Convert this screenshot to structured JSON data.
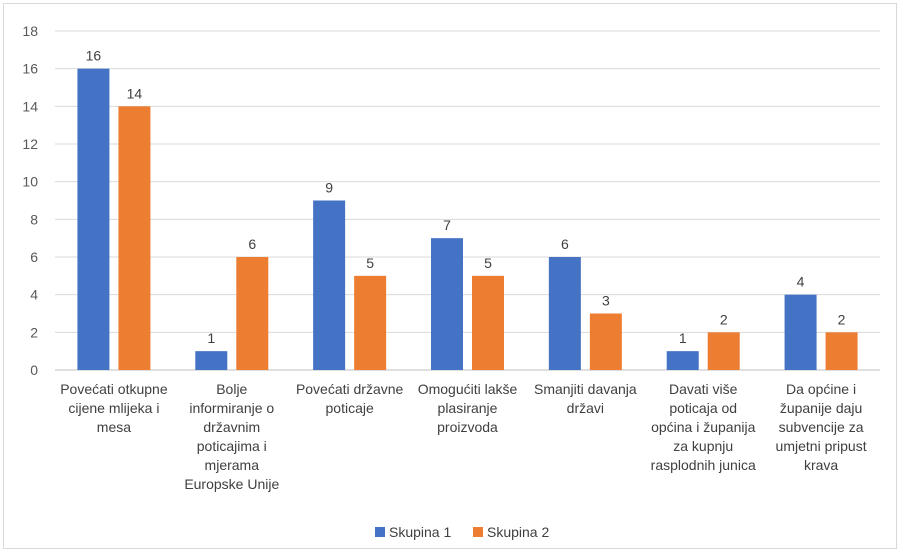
{
  "chart_data": {
    "type": "bar",
    "title": "",
    "xlabel": "",
    "ylabel": "",
    "ylim": [
      0,
      18
    ],
    "ytick_step": 2,
    "grid": true,
    "legend_position": "bottom",
    "categories": [
      [
        "Povećati otkupne",
        "cijene mlijeka i",
        "mesa"
      ],
      [
        "Bolje",
        "informiranje o",
        "državnim",
        "poticajima i",
        "mjerama",
        "Europske Unije"
      ],
      [
        "Povećati državne",
        "poticaje"
      ],
      [
        "Omogućiti lakše",
        "plasiranje",
        "proizvoda"
      ],
      [
        "Smanjiti davanja",
        "državi"
      ],
      [
        "Davati više",
        "poticaja od",
        "općina i županija",
        "za kupnju",
        "rasplodnih junica"
      ],
      [
        "Da općine i",
        "županije daju",
        "subvencije za",
        "umjetni pripust",
        "krava"
      ]
    ],
    "series": [
      {
        "name": "Skupina 1",
        "color": "#4472c4",
        "values": [
          16,
          1,
          9,
          7,
          6,
          1,
          4
        ]
      },
      {
        "name": "Skupina 2",
        "color": "#ed7d31",
        "values": [
          14,
          6,
          5,
          5,
          3,
          2,
          2
        ]
      }
    ]
  }
}
